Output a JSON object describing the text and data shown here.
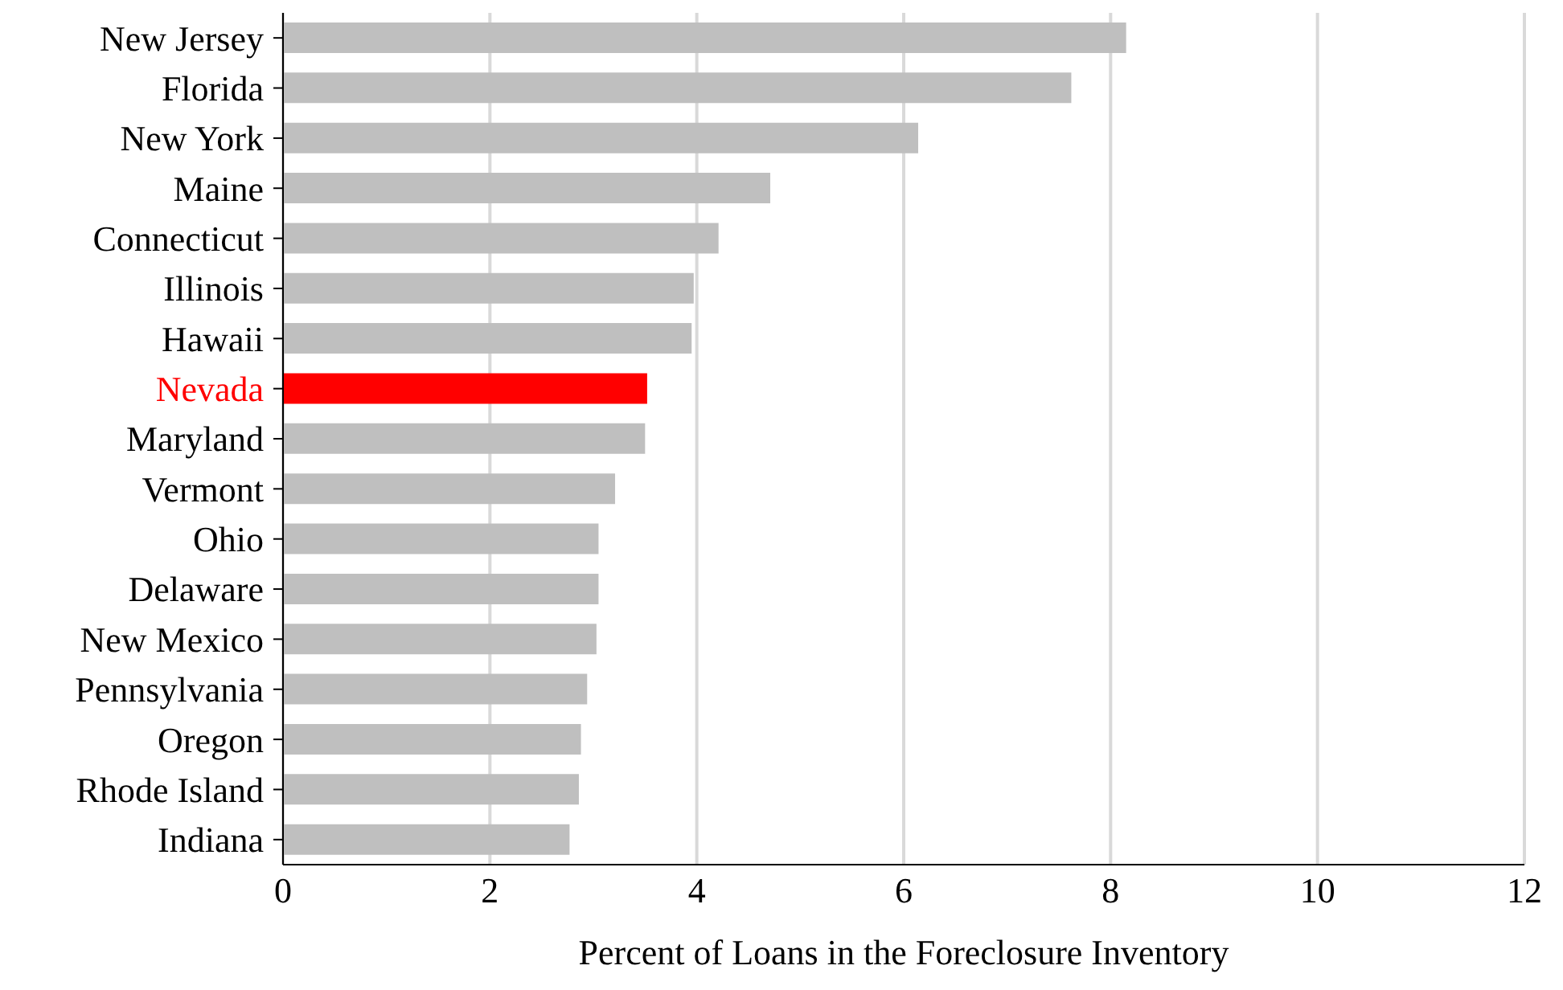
{
  "chart_data": {
    "type": "bar",
    "orientation": "horizontal",
    "xlabel": "Percent of Loans in the Foreclosure Inventory",
    "categories": [
      "New Jersey",
      "Florida",
      "New York",
      "Maine",
      "Connecticut",
      "Illinois",
      "Hawaii",
      "Nevada",
      "Maryland",
      "Vermont",
      "Ohio",
      "Delaware",
      "New Mexico",
      "Pennsylvania",
      "Oregon",
      "Rhode Island",
      "Indiana"
    ],
    "values": [
      8.15,
      7.62,
      6.14,
      4.71,
      4.21,
      3.97,
      3.95,
      3.52,
      3.5,
      3.21,
      3.05,
      3.05,
      3.03,
      2.94,
      2.88,
      2.86,
      2.77
    ],
    "colors": [
      "#bfbfbf",
      "#bfbfbf",
      "#bfbfbf",
      "#bfbfbf",
      "#bfbfbf",
      "#bfbfbf",
      "#bfbfbf",
      "#ff0000",
      "#bfbfbf",
      "#bfbfbf",
      "#bfbfbf",
      "#bfbfbf",
      "#bfbfbf",
      "#bfbfbf",
      "#bfbfbf",
      "#bfbfbf",
      "#bfbfbf"
    ],
    "xlim": [
      0,
      12
    ],
    "xticks": [
      0,
      2,
      4,
      6,
      8,
      10,
      12
    ],
    "grid": "x"
  }
}
